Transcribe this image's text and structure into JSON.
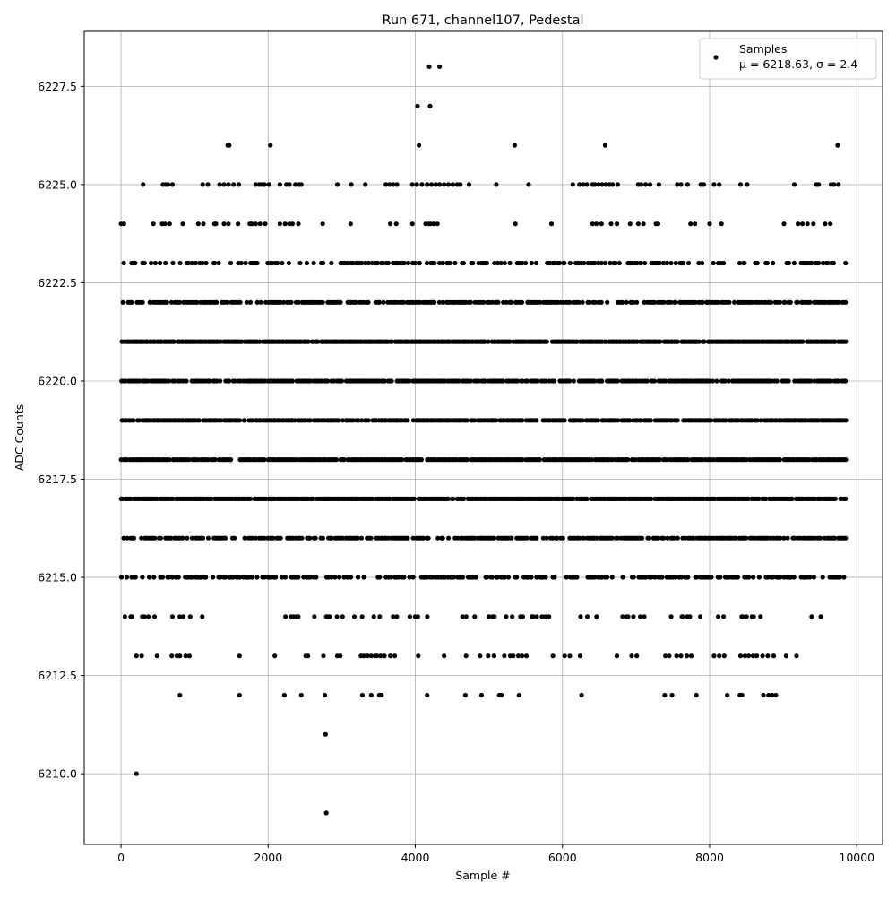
{
  "chart_data": {
    "type": "scatter",
    "title": "Run 671, channel107, Pedestal",
    "xlabel": "Sample #",
    "ylabel": "ADC Counts",
    "xlim": [
      -500,
      10350
    ],
    "ylim": [
      6208.2,
      6228.9
    ],
    "xticks": [
      0,
      2000,
      4000,
      6000,
      8000,
      10000
    ],
    "xtick_labels": [
      "0",
      "2000",
      "4000",
      "6000",
      "8000",
      "10000"
    ],
    "yticks": [
      6210.0,
      6212.5,
      6215.0,
      6217.5,
      6220.0,
      6222.5,
      6225.0,
      6227.5
    ],
    "ytick_labels": [
      "6210.0",
      "6212.5",
      "6215.0",
      "6217.5",
      "6220.0",
      "6222.5",
      "6225.0",
      "6227.5"
    ],
    "grid": true,
    "legend": {
      "placement": "top-right",
      "label": "Samples",
      "stats": "μ = 6218.63, σ = 2.4"
    },
    "marker_color": "#000000",
    "n_samples": 9850,
    "mean": 6218.63,
    "sigma": 2.4,
    "distinct_points": [
      {
        "x": 210,
        "y": 6210
      },
      {
        "x": 2790,
        "y": 6209
      },
      {
        "x": 2780,
        "y": 6211
      },
      {
        "x": 4030,
        "y": 6227
      },
      {
        "x": 4200,
        "y": 6227
      },
      {
        "x": 4190,
        "y": 6228
      },
      {
        "x": 4330,
        "y": 6228
      },
      {
        "x": 1450,
        "y": 6226
      },
      {
        "x": 1470,
        "y": 6226
      },
      {
        "x": 2030,
        "y": 6226
      },
      {
        "x": 4050,
        "y": 6226
      },
      {
        "x": 5350,
        "y": 6226
      },
      {
        "x": 6580,
        "y": 6226
      },
      {
        "x": 9740,
        "y": 6226
      }
    ],
    "bands": [
      {
        "y": 6212,
        "x": [
          800,
          1610,
          2220,
          2450,
          2770,
          3280,
          3400,
          3510,
          3540,
          4160,
          4680,
          4900,
          5140,
          5170,
          5410,
          6260,
          7390,
          7490,
          7820,
          8240,
          8410,
          8440,
          8730,
          8800,
          8850,
          8900
        ]
      },
      {
        "y": 6213,
        "x": [
          210,
          280,
          490,
          690,
          760,
          800,
          880,
          930,
          1610,
          2090,
          2510,
          2540,
          2750,
          2940,
          2980,
          3260,
          3300,
          3350,
          3400,
          3450,
          3480,
          3530,
          3580,
          3660,
          3720,
          4040,
          4390,
          4690,
          4880,
          4990,
          5070,
          5210,
          5290,
          5330,
          5400,
          5450,
          5510,
          5870,
          6030,
          6100,
          6240,
          6740,
          6940,
          7010,
          7400,
          7450,
          7550,
          7610,
          7690,
          7750,
          8060,
          8130,
          8200,
          8420,
          8480,
          8530,
          8590,
          8640,
          8720,
          8790,
          8870,
          9040,
          9180
        ]
      },
      {
        "y": 6214,
        "density": 0.22,
        "gaps": [
          [
            1200,
            2150
          ],
          [
            4200,
            4550
          ],
          [
            5900,
            6100
          ]
        ]
      },
      {
        "y": 6215,
        "density": 0.55,
        "gaps": []
      },
      {
        "y": 6216,
        "density": 0.7,
        "gaps": []
      },
      {
        "y": 6217,
        "density": 0.95,
        "gaps": []
      },
      {
        "y": 6218,
        "density": 0.92,
        "gaps": []
      },
      {
        "y": 6219,
        "density": 0.92,
        "gaps": []
      },
      {
        "y": 6220,
        "density": 0.8,
        "gaps": []
      },
      {
        "y": 6221,
        "density": 0.95,
        "gaps": []
      },
      {
        "y": 6222,
        "density": 0.75,
        "gaps": []
      },
      {
        "y": 6223,
        "density": 0.45,
        "gaps": []
      },
      {
        "y": 6224,
        "x": [
          0,
          40,
          440,
          560,
          600,
          660,
          840,
          1050,
          1120,
          1270,
          1290,
          1400,
          1460,
          1590,
          1750,
          1780,
          1830,
          1890,
          1960,
          2160,
          2230,
          2290,
          2330,
          2410,
          2740,
          3120,
          3660,
          3740,
          3960,
          4140,
          4180,
          4210,
          4250,
          4300,
          5360,
          5850,
          6410,
          6460,
          6530,
          6660,
          6740,
          6920,
          7030,
          7100,
          7270,
          7300,
          7740,
          7800,
          8000,
          8160,
          9010,
          9200,
          9260,
          9330,
          9410,
          9570,
          9640
        ]
      },
      {
        "y": 6225,
        "x": [
          300,
          570,
          610,
          640,
          700,
          1110,
          1180,
          1340,
          1400,
          1460,
          1530,
          1600,
          1830,
          1880,
          1920,
          1950,
          2010,
          2160,
          2250,
          2290,
          2370,
          2420,
          2450,
          2940,
          3130,
          3320,
          3600,
          3650,
          3700,
          3750,
          3960,
          4020,
          4090,
          4160,
          4220,
          4280,
          4330,
          4390,
          4450,
          4510,
          4570,
          4610,
          4730,
          5100,
          5540,
          6140,
          6230,
          6280,
          6330,
          6410,
          6440,
          6490,
          6540,
          6590,
          6640,
          6680,
          6750,
          7030,
          7070,
          7130,
          7190,
          7310,
          7560,
          7610,
          7700,
          7880,
          7920,
          8060,
          8130,
          8420,
          8510,
          9150,
          9450,
          9480,
          9650,
          9690,
          9750
        ]
      }
    ]
  }
}
